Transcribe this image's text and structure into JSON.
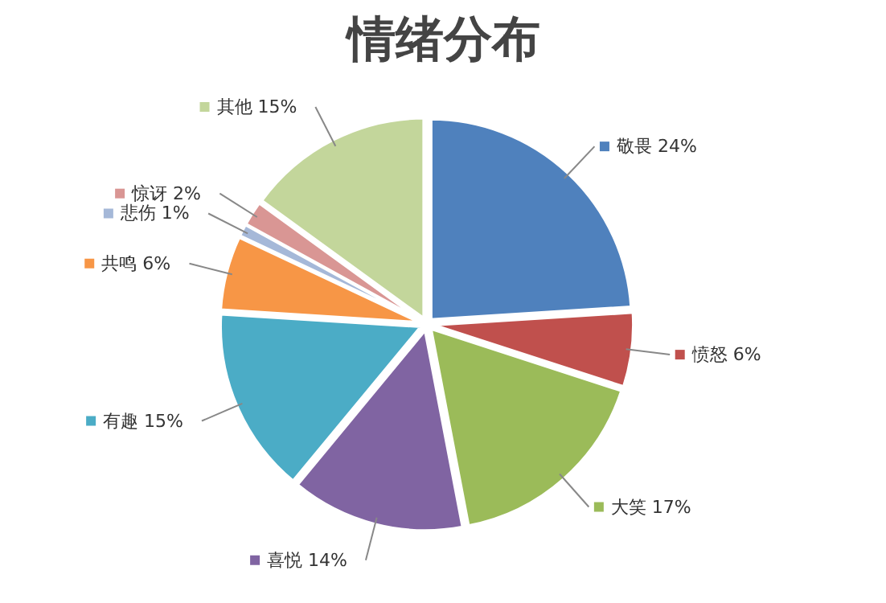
{
  "chart_data": {
    "type": "pie",
    "title": "情绪分布",
    "categories": [
      "敬畏",
      "愤怒",
      "大笑",
      "喜悦",
      "有趣",
      "共鸣",
      "悲伤",
      "惊讶",
      "其他"
    ],
    "values": [
      24,
      6,
      17,
      14,
      15,
      6,
      1,
      2,
      15
    ],
    "colors": [
      "#4f81bd",
      "#c0504d",
      "#9bbb59",
      "#8064a2",
      "#4bacc6",
      "#f79646",
      "#a5b8d8",
      "#d99694",
      "#c3d69b"
    ],
    "value_labels": [
      "24%",
      "6%",
      "17%",
      "14%",
      "15%",
      "6%",
      "1%",
      "2%",
      "15%"
    ],
    "legend": true
  }
}
